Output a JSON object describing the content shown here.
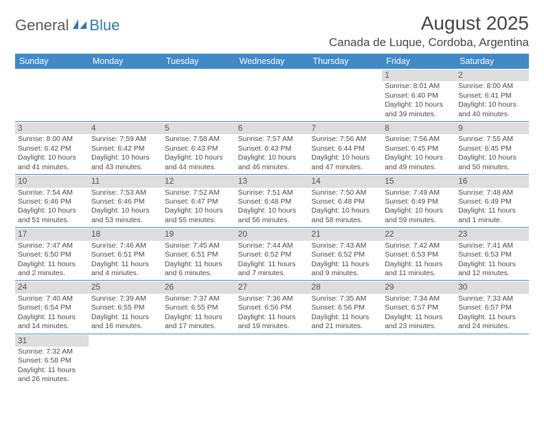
{
  "logo": {
    "text1": "General",
    "text2": "Blue"
  },
  "title": "August 2025",
  "location": "Canada de Luque, Cordoba, Argentina",
  "colors": {
    "header_bg": "#4189c7",
    "header_text": "#ffffff",
    "day_bg": "#dddddd",
    "border": "#4189c7",
    "body_text": "#4a4a4a"
  },
  "layout": {
    "weeks": 6,
    "first_day_column": 5,
    "days_in_month": 31
  },
  "day_headers": [
    "Sunday",
    "Monday",
    "Tuesday",
    "Wednesday",
    "Thursday",
    "Friday",
    "Saturday"
  ],
  "days": {
    "1": {
      "sunrise": "8:01 AM",
      "sunset": "6:40 PM",
      "daylight": "10 hours and 39 minutes."
    },
    "2": {
      "sunrise": "8:00 AM",
      "sunset": "6:41 PM",
      "daylight": "10 hours and 40 minutes."
    },
    "3": {
      "sunrise": "8:00 AM",
      "sunset": "6:42 PM",
      "daylight": "10 hours and 41 minutes."
    },
    "4": {
      "sunrise": "7:59 AM",
      "sunset": "6:42 PM",
      "daylight": "10 hours and 43 minutes."
    },
    "5": {
      "sunrise": "7:58 AM",
      "sunset": "6:43 PM",
      "daylight": "10 hours and 44 minutes."
    },
    "6": {
      "sunrise": "7:57 AM",
      "sunset": "6:43 PM",
      "daylight": "10 hours and 46 minutes."
    },
    "7": {
      "sunrise": "7:56 AM",
      "sunset": "6:44 PM",
      "daylight": "10 hours and 47 minutes."
    },
    "8": {
      "sunrise": "7:56 AM",
      "sunset": "6:45 PM",
      "daylight": "10 hours and 49 minutes."
    },
    "9": {
      "sunrise": "7:55 AM",
      "sunset": "6:45 PM",
      "daylight": "10 hours and 50 minutes."
    },
    "10": {
      "sunrise": "7:54 AM",
      "sunset": "6:46 PM",
      "daylight": "10 hours and 51 minutes."
    },
    "11": {
      "sunrise": "7:53 AM",
      "sunset": "6:46 PM",
      "daylight": "10 hours and 53 minutes."
    },
    "12": {
      "sunrise": "7:52 AM",
      "sunset": "6:47 PM",
      "daylight": "10 hours and 55 minutes."
    },
    "13": {
      "sunrise": "7:51 AM",
      "sunset": "6:48 PM",
      "daylight": "10 hours and 56 minutes."
    },
    "14": {
      "sunrise": "7:50 AM",
      "sunset": "6:48 PM",
      "daylight": "10 hours and 58 minutes."
    },
    "15": {
      "sunrise": "7:49 AM",
      "sunset": "6:49 PM",
      "daylight": "10 hours and 59 minutes."
    },
    "16": {
      "sunrise": "7:48 AM",
      "sunset": "6:49 PM",
      "daylight": "11 hours and 1 minute."
    },
    "17": {
      "sunrise": "7:47 AM",
      "sunset": "6:50 PM",
      "daylight": "11 hours and 2 minutes."
    },
    "18": {
      "sunrise": "7:46 AM",
      "sunset": "6:51 PM",
      "daylight": "11 hours and 4 minutes."
    },
    "19": {
      "sunrise": "7:45 AM",
      "sunset": "6:51 PM",
      "daylight": "11 hours and 6 minutes."
    },
    "20": {
      "sunrise": "7:44 AM",
      "sunset": "6:52 PM",
      "daylight": "11 hours and 7 minutes."
    },
    "21": {
      "sunrise": "7:43 AM",
      "sunset": "6:52 PM",
      "daylight": "11 hours and 9 minutes."
    },
    "22": {
      "sunrise": "7:42 AM",
      "sunset": "6:53 PM",
      "daylight": "11 hours and 11 minutes."
    },
    "23": {
      "sunrise": "7:41 AM",
      "sunset": "6:53 PM",
      "daylight": "11 hours and 12 minutes."
    },
    "24": {
      "sunrise": "7:40 AM",
      "sunset": "6:54 PM",
      "daylight": "11 hours and 14 minutes."
    },
    "25": {
      "sunrise": "7:39 AM",
      "sunset": "6:55 PM",
      "daylight": "11 hours and 16 minutes."
    },
    "26": {
      "sunrise": "7:37 AM",
      "sunset": "6:55 PM",
      "daylight": "11 hours and 17 minutes."
    },
    "27": {
      "sunrise": "7:36 AM",
      "sunset": "6:56 PM",
      "daylight": "11 hours and 19 minutes."
    },
    "28": {
      "sunrise": "7:35 AM",
      "sunset": "6:56 PM",
      "daylight": "11 hours and 21 minutes."
    },
    "29": {
      "sunrise": "7:34 AM",
      "sunset": "6:57 PM",
      "daylight": "11 hours and 23 minutes."
    },
    "30": {
      "sunrise": "7:33 AM",
      "sunset": "6:57 PM",
      "daylight": "11 hours and 24 minutes."
    },
    "31": {
      "sunrise": "7:32 AM",
      "sunset": "6:58 PM",
      "daylight": "11 hours and 26 minutes."
    }
  },
  "labels": {
    "sunrise": "Sunrise:",
    "sunset": "Sunset:",
    "daylight": "Daylight:"
  }
}
